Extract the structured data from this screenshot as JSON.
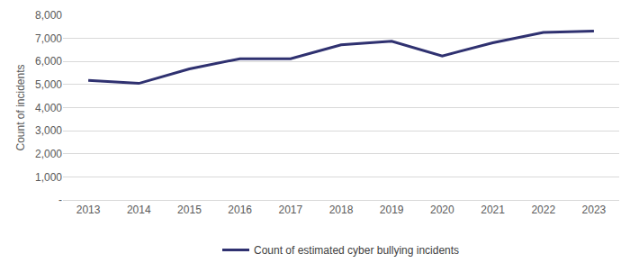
{
  "chart_data": {
    "type": "line",
    "y_label": "Count of incidents",
    "categories": [
      "2013",
      "2014",
      "2015",
      "2016",
      "2017",
      "2018",
      "2019",
      "2020",
      "2021",
      "2022",
      "2023"
    ],
    "series": [
      {
        "name": "Count of estimated cyber bullying incidents",
        "color": "#2f3170",
        "values": [
          5180,
          5050,
          5680,
          6120,
          6120,
          6720,
          6880,
          6240,
          6810,
          7260,
          7320
        ]
      }
    ],
    "ylim": [
      0,
      8000
    ],
    "yticks": [
      {
        "value": 0,
        "label": "-"
      },
      {
        "value": 1000,
        "label": "1,000"
      },
      {
        "value": 2000,
        "label": "2,000"
      },
      {
        "value": 3000,
        "label": "3,000"
      },
      {
        "value": 4000,
        "label": "4,000"
      },
      {
        "value": 5000,
        "label": "5,000"
      },
      {
        "value": 6000,
        "label": "6,000"
      },
      {
        "value": 7000,
        "label": "7,000"
      },
      {
        "value": 8000,
        "label": "8,000"
      }
    ],
    "grid": true,
    "legend": "bottom"
  }
}
